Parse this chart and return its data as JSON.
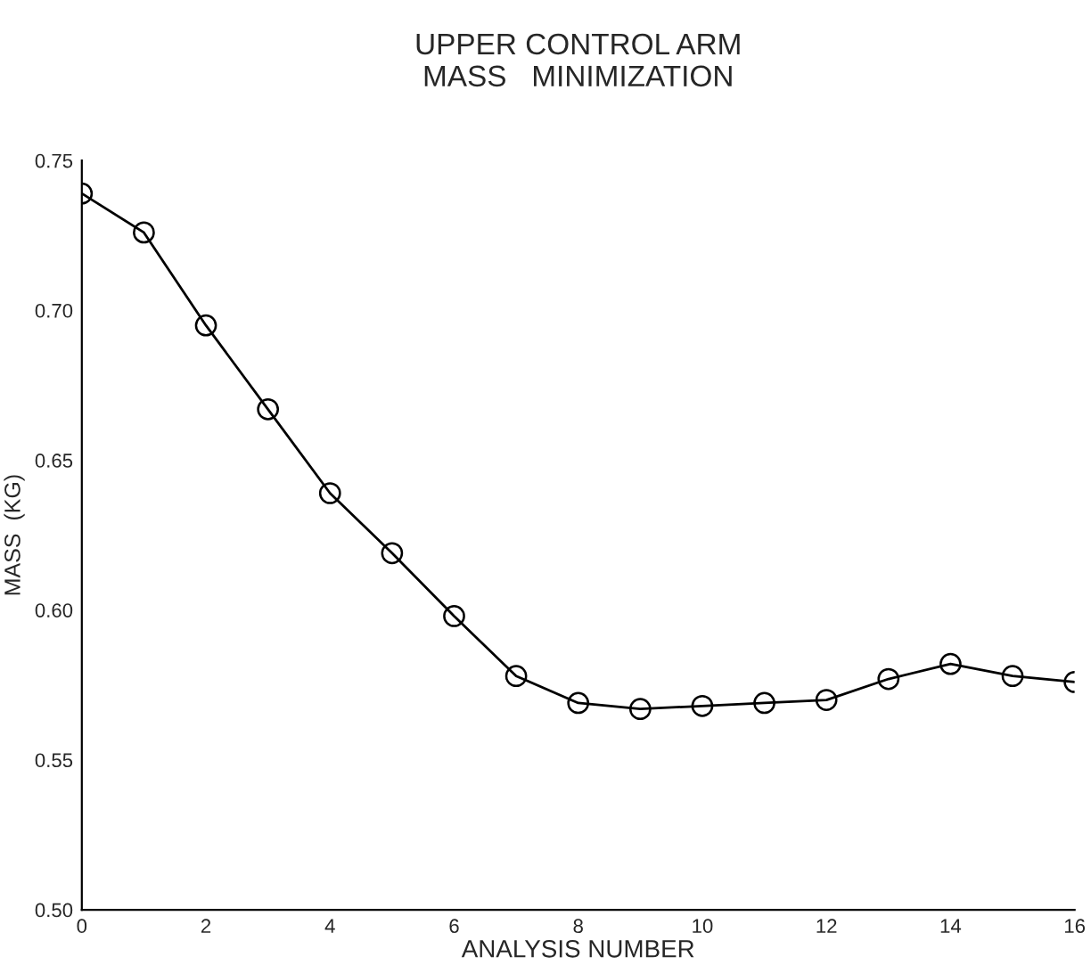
{
  "chart_data": {
    "type": "line",
    "title": "UPPER CONTROL ARM\nMASS   MINIMIZATION",
    "xlabel": "ANALYSIS NUMBER",
    "ylabel": "MASS  (KG)",
    "x": [
      0,
      1,
      2,
      3,
      4,
      5,
      6,
      7,
      8,
      9,
      10,
      11,
      12,
      13,
      14,
      15,
      16
    ],
    "series": [
      {
        "color": "#000000",
        "values": [
          0.739,
          0.726,
          0.695,
          0.667,
          0.639,
          0.619,
          0.598,
          0.578,
          0.569,
          0.567,
          0.568,
          0.569,
          0.57,
          0.577,
          0.582,
          0.578,
          0.576
        ]
      }
    ],
    "xlim": [
      0,
      16
    ],
    "xticks": [
      0,
      2,
      4,
      6,
      8,
      10,
      12,
      14,
      16
    ],
    "ylim": [
      0.5,
      0.75
    ],
    "yticks": [
      {
        "value": 0.5,
        "label": "0.50"
      },
      {
        "value": 0.55,
        "label": "0.55"
      },
      {
        "value": 0.6,
        "label": "0.60"
      },
      {
        "value": 0.65,
        "label": "0.65"
      },
      {
        "value": 0.7,
        "label": "0.70"
      },
      {
        "value": 0.75,
        "label": "0.75"
      }
    ],
    "marker": "circle",
    "line_style": "solid",
    "grid": false,
    "legend": false
  }
}
